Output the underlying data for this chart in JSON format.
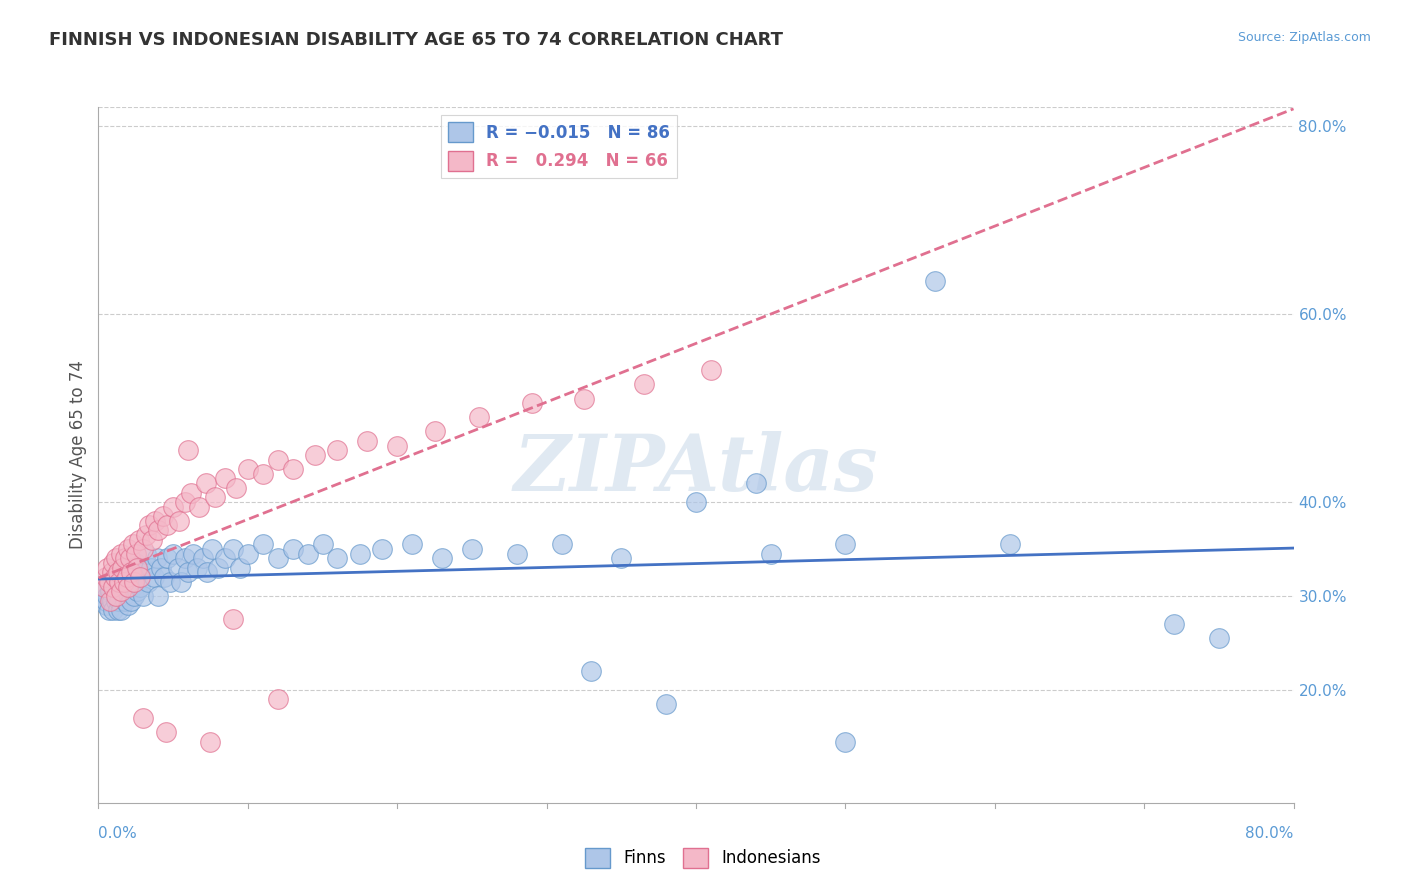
{
  "title": "FINNISH VS INDONESIAN DISABILITY AGE 65 TO 74 CORRELATION CHART",
  "source_text": "Source: ZipAtlas.com",
  "ylabel": "Disability Age 65 to 74",
  "xlim": [
    0.0,
    0.8
  ],
  "ylim": [
    0.08,
    0.82
  ],
  "yticks": [
    0.2,
    0.3,
    0.4,
    0.6,
    0.8
  ],
  "right_ytick_labels": [
    "20.0%",
    "30.0%",
    "40.0%",
    "60.0%",
    "80.0%"
  ],
  "background_color": "#ffffff",
  "grid_color": "#cccccc",
  "finn_color": "#aec6e8",
  "finn_edge_color": "#6699cc",
  "indonesian_color": "#f4b8c8",
  "indonesian_edge_color": "#e07090",
  "finn_line_color": "#4472c4",
  "indonesian_line_color": "#e07090",
  "watermark_color": "#c8d8e8",
  "finns_x": [
    0.005,
    0.005,
    0.005,
    0.006,
    0.007,
    0.008,
    0.009,
    0.01,
    0.01,
    0.011,
    0.012,
    0.012,
    0.013,
    0.013,
    0.014,
    0.014,
    0.015,
    0.015,
    0.016,
    0.017,
    0.018,
    0.018,
    0.019,
    0.02,
    0.02,
    0.021,
    0.022,
    0.022,
    0.023,
    0.024,
    0.025,
    0.026,
    0.027,
    0.028,
    0.03,
    0.03,
    0.032,
    0.033,
    0.035,
    0.037,
    0.039,
    0.04,
    0.042,
    0.044,
    0.046,
    0.048,
    0.05,
    0.053,
    0.055,
    0.058,
    0.06,
    0.063,
    0.066,
    0.07,
    0.073,
    0.076,
    0.08,
    0.085,
    0.09,
    0.095,
    0.1,
    0.11,
    0.12,
    0.13,
    0.14,
    0.15,
    0.16,
    0.175,
    0.19,
    0.21,
    0.23,
    0.25,
    0.28,
    0.31,
    0.35,
    0.4,
    0.45,
    0.5,
    0.44,
    0.56,
    0.61,
    0.33,
    0.38,
    0.72,
    0.75,
    0.5
  ],
  "finns_y": [
    0.31,
    0.29,
    0.295,
    0.3,
    0.285,
    0.305,
    0.295,
    0.315,
    0.285,
    0.305,
    0.32,
    0.295,
    0.31,
    0.285,
    0.325,
    0.295,
    0.31,
    0.285,
    0.315,
    0.3,
    0.325,
    0.295,
    0.31,
    0.33,
    0.29,
    0.315,
    0.335,
    0.295,
    0.31,
    0.3,
    0.335,
    0.305,
    0.325,
    0.31,
    0.33,
    0.3,
    0.345,
    0.315,
    0.33,
    0.32,
    0.34,
    0.3,
    0.33,
    0.32,
    0.34,
    0.315,
    0.345,
    0.33,
    0.315,
    0.34,
    0.325,
    0.345,
    0.33,
    0.34,
    0.325,
    0.35,
    0.33,
    0.34,
    0.35,
    0.33,
    0.345,
    0.355,
    0.34,
    0.35,
    0.345,
    0.355,
    0.34,
    0.345,
    0.35,
    0.355,
    0.34,
    0.35,
    0.345,
    0.355,
    0.34,
    0.4,
    0.345,
    0.355,
    0.42,
    0.635,
    0.355,
    0.22,
    0.185,
    0.27,
    0.255,
    0.145
  ],
  "indonesians_x": [
    0.004,
    0.005,
    0.006,
    0.007,
    0.008,
    0.009,
    0.01,
    0.01,
    0.011,
    0.012,
    0.012,
    0.013,
    0.014,
    0.015,
    0.015,
    0.016,
    0.017,
    0.018,
    0.019,
    0.02,
    0.02,
    0.021,
    0.022,
    0.023,
    0.024,
    0.025,
    0.026,
    0.027,
    0.028,
    0.03,
    0.032,
    0.034,
    0.036,
    0.038,
    0.04,
    0.043,
    0.046,
    0.05,
    0.054,
    0.058,
    0.062,
    0.067,
    0.072,
    0.078,
    0.085,
    0.092,
    0.1,
    0.11,
    0.12,
    0.13,
    0.145,
    0.16,
    0.18,
    0.2,
    0.225,
    0.255,
    0.29,
    0.325,
    0.365,
    0.41,
    0.06,
    0.09,
    0.12,
    0.03,
    0.045,
    0.075
  ],
  "indonesians_y": [
    0.31,
    0.32,
    0.33,
    0.315,
    0.295,
    0.325,
    0.31,
    0.335,
    0.32,
    0.3,
    0.34,
    0.325,
    0.315,
    0.345,
    0.305,
    0.33,
    0.315,
    0.34,
    0.32,
    0.35,
    0.31,
    0.34,
    0.325,
    0.355,
    0.315,
    0.345,
    0.33,
    0.36,
    0.32,
    0.35,
    0.365,
    0.375,
    0.36,
    0.38,
    0.37,
    0.385,
    0.375,
    0.395,
    0.38,
    0.4,
    0.41,
    0.395,
    0.42,
    0.405,
    0.425,
    0.415,
    0.435,
    0.43,
    0.445,
    0.435,
    0.45,
    0.455,
    0.465,
    0.46,
    0.475,
    0.49,
    0.505,
    0.51,
    0.525,
    0.54,
    0.455,
    0.275,
    0.19,
    0.17,
    0.155,
    0.145
  ]
}
